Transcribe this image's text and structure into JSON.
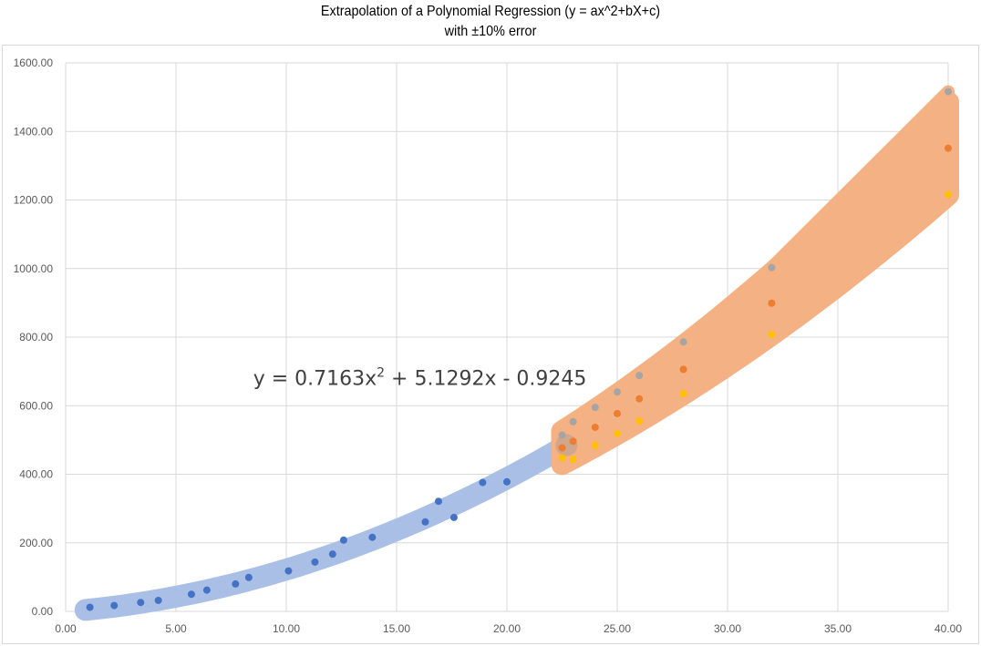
{
  "chart_data": {
    "type": "scatter",
    "title": "Extrapolation of a Polynomial Regression (y = ax^2+bX+c)",
    "subtitle": "with ±10% error",
    "xlabel": "",
    "ylabel": "",
    "xlim": [
      0,
      40
    ],
    "ylim": [
      0,
      1600
    ],
    "x_ticks": [
      "0.00",
      "5.00",
      "10.00",
      "15.00",
      "20.00",
      "25.00",
      "30.00",
      "35.00",
      "40.00"
    ],
    "y_ticks": [
      "0.00",
      "200.00",
      "400.00",
      "600.00",
      "800.00",
      "1000.00",
      "1200.00",
      "1400.00",
      "1600.00"
    ],
    "grid": true,
    "legend": "none",
    "annotation": {
      "prefix": "y = 0.7163x",
      "sup": "2",
      "suffix": " + 5.1292x - 0.9245",
      "x": 8.5,
      "y": 660
    },
    "colors": {
      "observed": "#4472C4",
      "observed_band": "#A9BFE6",
      "upper": "#A5A5A5",
      "predicted": "#ED7D31",
      "lower": "#FFC000",
      "extrapolation_band": "#F4B183",
      "grid": "#D9D9D9"
    },
    "series": [
      {
        "role": "observed",
        "x": [
          1.1,
          2.2,
          3.4,
          4.2,
          5.7,
          6.4,
          7.7,
          8.3,
          10.1,
          11.3,
          12.1,
          12.6,
          13.9,
          16.3,
          16.9,
          17.6,
          18.9,
          20.0
        ],
        "y": [
          12,
          17,
          26,
          32,
          50,
          62,
          80,
          99,
          118,
          144,
          167,
          208,
          216,
          261,
          321,
          274,
          376,
          378
        ]
      },
      {
        "role": "upper",
        "x": [
          22.5,
          23.0,
          24.0,
          25.0,
          26.0,
          28.0,
          32.0,
          40.0
        ],
        "y": [
          514,
          553,
          595,
          640,
          688,
          786,
          1003,
          1516
        ]
      },
      {
        "role": "predicted",
        "x": [
          22.5,
          23.0,
          24.0,
          25.0,
          26.0,
          28.0,
          32.0,
          40.0
        ],
        "y": [
          477,
          496,
          537,
          577,
          620,
          706,
          899,
          1351
        ]
      },
      {
        "role": "lower",
        "x": [
          22.5,
          23.0,
          24.0,
          25.0,
          26.0,
          28.0,
          32.0,
          40.0
        ],
        "y": [
          448,
          444,
          484,
          519,
          555,
          635,
          808,
          1216
        ]
      }
    ]
  }
}
